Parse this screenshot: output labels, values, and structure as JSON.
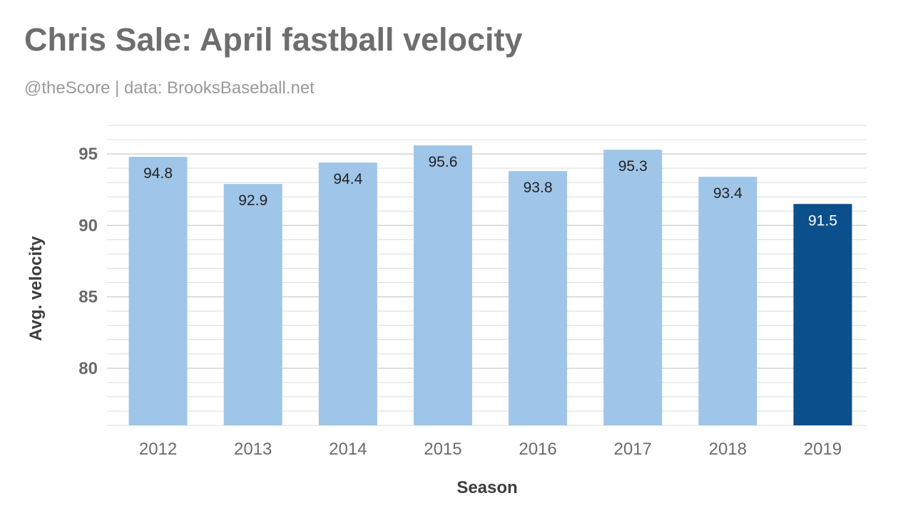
{
  "chart_data": {
    "type": "bar",
    "title": "Chris Sale: April fastball velocity",
    "subtitle": "@theScore | data: BrooksBaseball.net",
    "xlabel": "Season",
    "ylabel": "Avg. velocity",
    "categories": [
      "2012",
      "2013",
      "2014",
      "2015",
      "2016",
      "2017",
      "2018",
      "2019"
    ],
    "series": [
      {
        "values": [
          94.8,
          92.9,
          94.4,
          95.6,
          93.8,
          95.3,
          93.4,
          91.5
        ]
      }
    ],
    "labels": [
      "94.8",
      "92.9",
      "94.4",
      "95.6",
      "93.8",
      "95.3",
      "93.4",
      "91.5"
    ],
    "yticks": [
      "80",
      "85",
      "90",
      "95"
    ],
    "ylim": [
      76,
      97
    ],
    "grid": true,
    "legend": "none",
    "colors": {
      "bar": "#9fc5e8",
      "highlight": "#0b4f8c",
      "label_dark": "#222222",
      "label_light": "#ffffff",
      "gridline": "#dcdcdc"
    },
    "highlight_index": 7
  }
}
